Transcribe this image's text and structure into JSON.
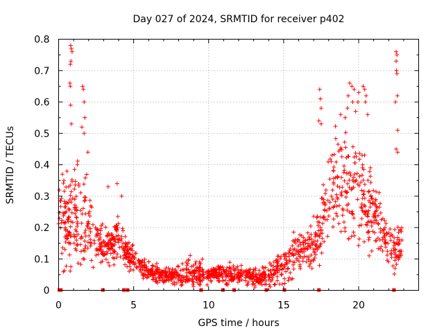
{
  "chart_data": {
    "type": "scatter",
    "title": "Day 027 of 2024, SRMTID for receiver p402",
    "xlabel": "GPS time / hours",
    "ylabel": "SRMTID / TECUs",
    "xlim": [
      0,
      24
    ],
    "ylim": [
      0,
      0.8
    ],
    "x_ticks": [
      0,
      5,
      10,
      15,
      20
    ],
    "x_tick_labels": [
      "0",
      "5",
      "10",
      "15",
      "20"
    ],
    "y_ticks": [
      0,
      0.1,
      0.2,
      0.3,
      0.4,
      0.5,
      0.6,
      0.7,
      0.8
    ],
    "y_tick_labels": [
      "0",
      "0.1",
      "0.2",
      "0.3",
      "0.4",
      "0.5",
      "0.6",
      "0.7",
      "0.8"
    ],
    "grid": true,
    "marker": "+",
    "color": "#ff0000",
    "series_profile": {
      "hours": [
        0,
        0.5,
        1,
        1.5,
        2,
        2.5,
        3,
        3.5,
        4,
        4.5,
        5,
        6,
        7,
        8,
        9,
        10,
        11,
        12,
        13,
        14,
        15,
        15.5,
        16,
        16.5,
        17,
        17.5,
        18,
        18.5,
        19,
        19.5,
        20,
        20.5,
        21,
        21.5,
        22,
        22.5,
        23
      ],
      "median_srmtid": [
        0.22,
        0.2,
        0.25,
        0.24,
        0.2,
        0.16,
        0.13,
        0.14,
        0.17,
        0.12,
        0.1,
        0.06,
        0.05,
        0.05,
        0.06,
        0.05,
        0.05,
        0.05,
        0.04,
        0.05,
        0.08,
        0.1,
        0.12,
        0.14,
        0.13,
        0.2,
        0.3,
        0.33,
        0.32,
        0.3,
        0.32,
        0.28,
        0.25,
        0.2,
        0.15,
        0.13,
        0.16
      ],
      "spread": [
        0.08,
        0.1,
        0.12,
        0.12,
        0.08,
        0.05,
        0.04,
        0.05,
        0.06,
        0.04,
        0.03,
        0.02,
        0.02,
        0.02,
        0.03,
        0.02,
        0.02,
        0.02,
        0.02,
        0.02,
        0.04,
        0.04,
        0.04,
        0.04,
        0.05,
        0.08,
        0.1,
        0.12,
        0.12,
        0.12,
        0.12,
        0.1,
        0.08,
        0.06,
        0.05,
        0.05,
        0.06
      ]
    },
    "outliers": [
      {
        "x": 0.8,
        "y": 0.78
      },
      {
        "x": 0.85,
        "y": 0.77
      },
      {
        "x": 0.9,
        "y": 0.76
      },
      {
        "x": 0.82,
        "y": 0.73
      },
      {
        "x": 0.78,
        "y": 0.72
      },
      {
        "x": 0.75,
        "y": 0.66
      },
      {
        "x": 0.78,
        "y": 0.65
      },
      {
        "x": 0.8,
        "y": 0.59
      },
      {
        "x": 0.85,
        "y": 0.53
      },
      {
        "x": 1.6,
        "y": 0.65
      },
      {
        "x": 1.65,
        "y": 0.64
      },
      {
        "x": 1.7,
        "y": 0.6
      },
      {
        "x": 1.75,
        "y": 0.55
      },
      {
        "x": 1.55,
        "y": 0.52
      },
      {
        "x": 1.7,
        "y": 0.5
      },
      {
        "x": 17.4,
        "y": 0.64
      },
      {
        "x": 17.45,
        "y": 0.61
      },
      {
        "x": 17.5,
        "y": 0.58
      },
      {
        "x": 17.35,
        "y": 0.54
      },
      {
        "x": 17.5,
        "y": 0.53
      },
      {
        "x": 19.4,
        "y": 0.66
      },
      {
        "x": 19.55,
        "y": 0.65
      },
      {
        "x": 19.7,
        "y": 0.64
      },
      {
        "x": 19.3,
        "y": 0.62
      },
      {
        "x": 19.6,
        "y": 0.6
      },
      {
        "x": 19.25,
        "y": 0.58
      },
      {
        "x": 18.8,
        "y": 0.56
      },
      {
        "x": 19.1,
        "y": 0.55
      },
      {
        "x": 19.8,
        "y": 0.57
      },
      {
        "x": 20.3,
        "y": 0.65
      },
      {
        "x": 20.4,
        "y": 0.64
      },
      {
        "x": 20.5,
        "y": 0.62
      },
      {
        "x": 20.45,
        "y": 0.6
      },
      {
        "x": 20.6,
        "y": 0.56
      },
      {
        "x": 20.0,
        "y": 0.63
      },
      {
        "x": 19.95,
        "y": 0.6
      },
      {
        "x": 22.5,
        "y": 0.76
      },
      {
        "x": 22.55,
        "y": 0.75
      },
      {
        "x": 22.5,
        "y": 0.73
      },
      {
        "x": 22.52,
        "y": 0.7
      },
      {
        "x": 22.55,
        "y": 0.69
      },
      {
        "x": 22.58,
        "y": 0.62
      },
      {
        "x": 22.45,
        "y": 0.6
      },
      {
        "x": 22.6,
        "y": 0.51
      },
      {
        "x": 22.5,
        "y": 0.45
      },
      {
        "x": 22.6,
        "y": 0.44
      },
      {
        "x": 0.25,
        "y": 0.37
      },
      {
        "x": 0.35,
        "y": 0.35
      },
      {
        "x": 1.95,
        "y": 0.44
      },
      {
        "x": 3.9,
        "y": 0.34
      },
      {
        "x": 4.2,
        "y": 0.3
      },
      {
        "x": 3.3,
        "y": 0.33
      }
    ],
    "zero_points_x": [
      0.05,
      0.15,
      2.95,
      4.35,
      4.6,
      9.5,
      10.95,
      11.7,
      13.85,
      15.05,
      17.35,
      22.35
    ]
  }
}
